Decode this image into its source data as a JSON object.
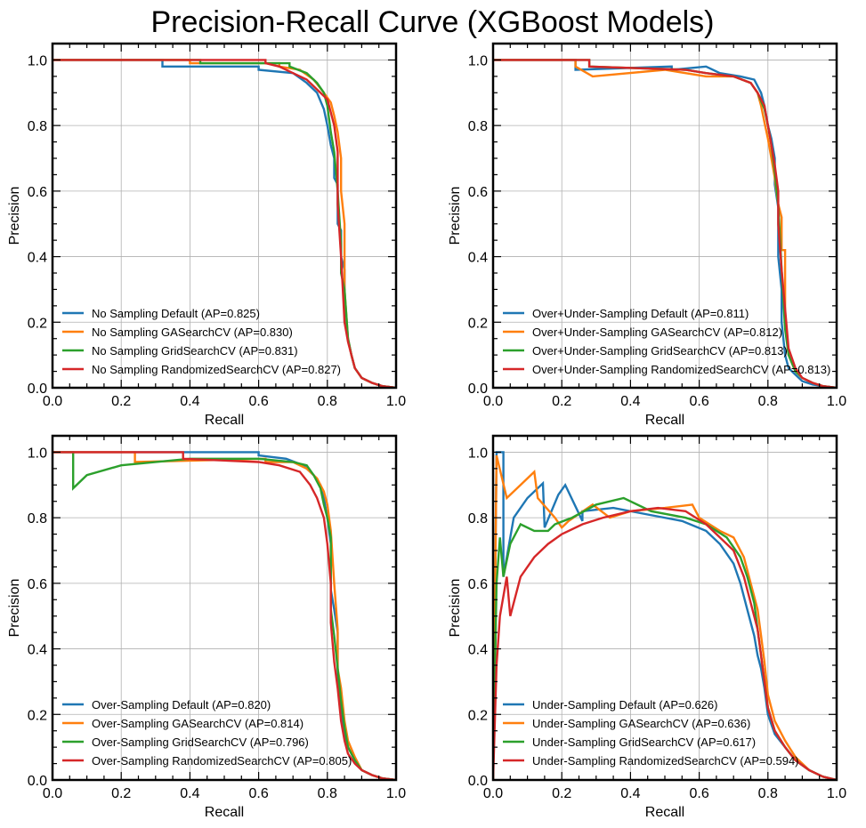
{
  "figure_title": "Precision-Recall Curve (XGBoost Models)",
  "colors": {
    "blue": "#1f77b4",
    "orange": "#ff7f0e",
    "green": "#2ca02c",
    "red": "#d62728"
  },
  "chart_data": [
    {
      "type": "line",
      "xlabel": "Recall",
      "ylabel": "Precision",
      "xlim": [
        0,
        1
      ],
      "ylim": [
        0,
        1.05
      ],
      "x_ticks": [
        "0.0",
        "0.2",
        "0.4",
        "0.6",
        "0.8",
        "1.0"
      ],
      "y_ticks": [
        "0.0",
        "0.2",
        "0.4",
        "0.6",
        "0.8",
        "1.0"
      ],
      "grid": true,
      "legend_position": "lower-left",
      "series": [
        {
          "name": "No Sampling Default (AP=0.825)",
          "color": "#1f77b4",
          "x": [
            0,
            0.32,
            0.32,
            0.6,
            0.6,
            0.7,
            0.74,
            0.77,
            0.79,
            0.8,
            0.81,
            0.82,
            0.82,
            0.83,
            0.83,
            0.84,
            0.84,
            0.85,
            0.85,
            0.86,
            0.87,
            0.88,
            0.9,
            0.93,
            0.96,
            1.0
          ],
          "y": [
            1.0,
            1.0,
            0.98,
            0.98,
            0.97,
            0.96,
            0.93,
            0.9,
            0.85,
            0.8,
            0.74,
            0.7,
            0.64,
            0.62,
            0.5,
            0.48,
            0.4,
            0.36,
            0.2,
            0.15,
            0.1,
            0.06,
            0.03,
            0.015,
            0.005,
            0.0
          ]
        },
        {
          "name": "No Sampling GASearchCV (AP=0.830)",
          "color": "#ff7f0e",
          "x": [
            0,
            0.4,
            0.4,
            0.66,
            0.66,
            0.72,
            0.76,
            0.79,
            0.81,
            0.82,
            0.83,
            0.84,
            0.84,
            0.85,
            0.85,
            0.86,
            0.87,
            0.88,
            0.9,
            0.93,
            0.96,
            1.0
          ],
          "y": [
            1.0,
            1.0,
            0.99,
            0.99,
            0.98,
            0.97,
            0.94,
            0.9,
            0.87,
            0.83,
            0.78,
            0.7,
            0.6,
            0.5,
            0.3,
            0.15,
            0.1,
            0.06,
            0.03,
            0.015,
            0.005,
            0.0
          ]
        },
        {
          "name": "No Sampling GridSearchCV (AP=0.831)",
          "color": "#2ca02c",
          "x": [
            0,
            0.43,
            0.43,
            0.69,
            0.69,
            0.74,
            0.77,
            0.79,
            0.8,
            0.81,
            0.82,
            0.83,
            0.84,
            0.84,
            0.85,
            0.86,
            0.87,
            0.88,
            0.9,
            0.93,
            0.96,
            1.0
          ],
          "y": [
            1.0,
            1.0,
            0.99,
            0.99,
            0.98,
            0.96,
            0.93,
            0.9,
            0.86,
            0.78,
            0.72,
            0.6,
            0.44,
            0.35,
            0.3,
            0.15,
            0.1,
            0.06,
            0.03,
            0.015,
            0.005,
            0.0
          ]
        },
        {
          "name": "No Sampling RandomizedSearchCV (AP=0.827)",
          "color": "#d62728",
          "x": [
            0,
            0.62,
            0.62,
            0.66,
            0.7,
            0.74,
            0.77,
            0.8,
            0.81,
            0.82,
            0.83,
            0.83,
            0.84,
            0.85,
            0.86,
            0.87,
            0.88,
            0.9,
            0.93,
            0.96,
            1.0
          ],
          "y": [
            1.0,
            1.0,
            0.99,
            0.98,
            0.96,
            0.94,
            0.91,
            0.88,
            0.84,
            0.8,
            0.72,
            0.56,
            0.4,
            0.2,
            0.14,
            0.1,
            0.06,
            0.03,
            0.015,
            0.005,
            0.0
          ]
        }
      ]
    },
    {
      "type": "line",
      "xlabel": "Recall",
      "ylabel": "Precision",
      "xlim": [
        0,
        1
      ],
      "ylim": [
        0,
        1.05
      ],
      "x_ticks": [
        "0.0",
        "0.2",
        "0.4",
        "0.6",
        "0.8",
        "1.0"
      ],
      "y_ticks": [
        "0.0",
        "0.2",
        "0.4",
        "0.6",
        "0.8",
        "1.0"
      ],
      "grid": true,
      "legend_position": "lower-left",
      "series": [
        {
          "name": "Over+Under-Sampling Default (AP=0.811)",
          "color": "#1f77b4",
          "x": [
            0,
            0.24,
            0.24,
            0.52,
            0.52,
            0.62,
            0.66,
            0.72,
            0.76,
            0.78,
            0.79,
            0.8,
            0.81,
            0.82,
            0.82,
            0.83,
            0.83,
            0.84,
            0.84,
            0.85,
            0.86,
            0.88,
            0.9,
            0.93,
            0.96,
            1.0
          ],
          "y": [
            1.0,
            1.0,
            0.97,
            0.98,
            0.97,
            0.98,
            0.96,
            0.95,
            0.94,
            0.9,
            0.86,
            0.8,
            0.76,
            0.7,
            0.62,
            0.55,
            0.4,
            0.3,
            0.2,
            0.1,
            0.06,
            0.04,
            0.02,
            0.01,
            0.005,
            0.0
          ]
        },
        {
          "name": "Over+Under-Sampling GASearchCV (AP=0.812)",
          "color": "#ff7f0e",
          "x": [
            0,
            0.24,
            0.24,
            0.29,
            0.5,
            0.56,
            0.62,
            0.7,
            0.75,
            0.77,
            0.78,
            0.79,
            0.8,
            0.81,
            0.82,
            0.83,
            0.84,
            0.84,
            0.85,
            0.85,
            0.86,
            0.88,
            0.9,
            0.93,
            0.96,
            1.0
          ],
          "y": [
            1.0,
            1.0,
            0.98,
            0.95,
            0.97,
            0.96,
            0.95,
            0.95,
            0.93,
            0.9,
            0.86,
            0.81,
            0.76,
            0.7,
            0.64,
            0.56,
            0.52,
            0.42,
            0.42,
            0.2,
            0.1,
            0.05,
            0.03,
            0.015,
            0.005,
            0.0
          ]
        },
        {
          "name": "Over+Under-Sampling GridSearchCV (AP=0.813)",
          "color": "#2ca02c",
          "x": [
            0,
            0.28,
            0.28,
            0.56,
            0.62,
            0.7,
            0.75,
            0.77,
            0.79,
            0.8,
            0.81,
            0.82,
            0.83,
            0.84,
            0.85,
            0.86,
            0.88,
            0.9,
            0.93,
            0.96,
            1.0
          ],
          "y": [
            1.0,
            1.0,
            0.98,
            0.97,
            0.96,
            0.95,
            0.93,
            0.9,
            0.85,
            0.8,
            0.74,
            0.66,
            0.56,
            0.36,
            0.18,
            0.1,
            0.05,
            0.03,
            0.015,
            0.005,
            0.0
          ]
        },
        {
          "name": "Over+Under-Sampling RandomizedSearchCV (AP=0.813)",
          "color": "#d62728",
          "x": [
            0,
            0.28,
            0.28,
            0.56,
            0.62,
            0.7,
            0.75,
            0.77,
            0.79,
            0.8,
            0.81,
            0.82,
            0.83,
            0.83,
            0.84,
            0.85,
            0.86,
            0.88,
            0.9,
            0.93,
            0.96,
            1.0
          ],
          "y": [
            1.0,
            1.0,
            0.98,
            0.97,
            0.96,
            0.95,
            0.93,
            0.9,
            0.86,
            0.8,
            0.74,
            0.68,
            0.6,
            0.5,
            0.36,
            0.24,
            0.12,
            0.06,
            0.03,
            0.015,
            0.005,
            0.0
          ]
        }
      ]
    },
    {
      "type": "line",
      "xlabel": "Recall",
      "ylabel": "Precision",
      "xlim": [
        0,
        1
      ],
      "ylim": [
        0,
        1.05
      ],
      "x_ticks": [
        "0.0",
        "0.2",
        "0.4",
        "0.6",
        "0.8",
        "1.0"
      ],
      "y_ticks": [
        "0.0",
        "0.2",
        "0.4",
        "0.6",
        "0.8",
        "1.0"
      ],
      "grid": true,
      "legend_position": "lower-left",
      "series": [
        {
          "name": "Over-Sampling Default (AP=0.820)",
          "color": "#1f77b4",
          "x": [
            0,
            0.6,
            0.6,
            0.68,
            0.73,
            0.76,
            0.78,
            0.79,
            0.8,
            0.81,
            0.81,
            0.82,
            0.83,
            0.83,
            0.84,
            0.85,
            0.86,
            0.88,
            0.9,
            0.93,
            0.96,
            1.0
          ],
          "y": [
            1.0,
            1.0,
            0.99,
            0.98,
            0.96,
            0.93,
            0.9,
            0.86,
            0.8,
            0.72,
            0.58,
            0.52,
            0.45,
            0.33,
            0.2,
            0.14,
            0.1,
            0.06,
            0.03,
            0.015,
            0.005,
            0.0
          ]
        },
        {
          "name": "Over-Sampling GASearchCV (AP=0.814)",
          "color": "#ff7f0e",
          "x": [
            0,
            0.24,
            0.24,
            0.62,
            0.62,
            0.7,
            0.74,
            0.77,
            0.79,
            0.8,
            0.81,
            0.82,
            0.83,
            0.83,
            0.84,
            0.85,
            0.86,
            0.88,
            0.9,
            0.93,
            0.96,
            1.0
          ],
          "y": [
            1.0,
            1.0,
            0.97,
            0.98,
            0.97,
            0.97,
            0.95,
            0.92,
            0.88,
            0.84,
            0.76,
            0.6,
            0.46,
            0.34,
            0.28,
            0.18,
            0.12,
            0.07,
            0.03,
            0.015,
            0.005,
            0.0
          ]
        },
        {
          "name": "Over-Sampling GridSearchCV (AP=0.796)",
          "color": "#2ca02c",
          "x": [
            0,
            0.06,
            0.06,
            0.1,
            0.2,
            0.4,
            0.6,
            0.7,
            0.74,
            0.76,
            0.78,
            0.79,
            0.8,
            0.81,
            0.81,
            0.82,
            0.83,
            0.84,
            0.85,
            0.86,
            0.88,
            0.9,
            0.93,
            0.96,
            1.0
          ],
          "y": [
            1.0,
            1.0,
            0.89,
            0.93,
            0.96,
            0.98,
            0.98,
            0.97,
            0.96,
            0.93,
            0.89,
            0.84,
            0.8,
            0.74,
            0.52,
            0.44,
            0.34,
            0.24,
            0.16,
            0.1,
            0.06,
            0.03,
            0.015,
            0.005,
            0.0
          ]
        },
        {
          "name": "Over-Sampling RandomizedSearchCV (AP=0.805)",
          "color": "#d62728",
          "x": [
            0,
            0.38,
            0.38,
            0.6,
            0.66,
            0.72,
            0.75,
            0.77,
            0.79,
            0.8,
            0.81,
            0.81,
            0.82,
            0.83,
            0.84,
            0.85,
            0.86,
            0.88,
            0.9,
            0.93,
            0.96,
            1.0
          ],
          "y": [
            1.0,
            1.0,
            0.98,
            0.97,
            0.96,
            0.94,
            0.9,
            0.86,
            0.8,
            0.72,
            0.6,
            0.48,
            0.36,
            0.28,
            0.18,
            0.12,
            0.08,
            0.05,
            0.03,
            0.015,
            0.005,
            0.0
          ]
        }
      ]
    },
    {
      "type": "line",
      "xlabel": "Recall",
      "ylabel": "Precision",
      "xlim": [
        0,
        1
      ],
      "ylim": [
        0,
        1.05
      ],
      "x_ticks": [
        "0.0",
        "0.2",
        "0.4",
        "0.6",
        "0.8",
        "1.0"
      ],
      "y_ticks": [
        "0.0",
        "0.2",
        "0.4",
        "0.6",
        "0.8",
        "1.0"
      ],
      "grid": true,
      "legend_position": "lower-left",
      "series": [
        {
          "name": "Under-Sampling Default (AP=0.626)",
          "color": "#1f77b4",
          "x": [
            0,
            0.01,
            0.03,
            0.03,
            0.06,
            0.1,
            0.145,
            0.15,
            0.19,
            0.21,
            0.26,
            0.26,
            0.35,
            0.45,
            0.55,
            0.62,
            0.66,
            0.7,
            0.72,
            0.74,
            0.76,
            0.77,
            0.78,
            0.79,
            0.8,
            0.82,
            0.85,
            0.88,
            0.92,
            0.96,
            1.0
          ],
          "y": [
            0.0,
            1.0,
            1.0,
            0.62,
            0.8,
            0.86,
            0.905,
            0.77,
            0.87,
            0.9,
            0.79,
            0.82,
            0.83,
            0.81,
            0.79,
            0.76,
            0.72,
            0.66,
            0.6,
            0.52,
            0.44,
            0.38,
            0.34,
            0.28,
            0.2,
            0.14,
            0.1,
            0.06,
            0.03,
            0.01,
            0.0
          ]
        },
        {
          "name": "Under-Sampling GASearchCV (AP=0.636)",
          "color": "#ff7f0e",
          "x": [
            0,
            0.01,
            0.04,
            0.08,
            0.12,
            0.13,
            0.18,
            0.2,
            0.22,
            0.29,
            0.34,
            0.4,
            0.5,
            0.58,
            0.6,
            0.66,
            0.7,
            0.73,
            0.75,
            0.77,
            0.78,
            0.79,
            0.8,
            0.82,
            0.85,
            0.88,
            0.92,
            0.96,
            1.0
          ],
          "y": [
            0.0,
            0.99,
            0.86,
            0.9,
            0.94,
            0.86,
            0.8,
            0.77,
            0.79,
            0.84,
            0.8,
            0.82,
            0.83,
            0.84,
            0.8,
            0.76,
            0.74,
            0.68,
            0.6,
            0.52,
            0.44,
            0.36,
            0.26,
            0.18,
            0.12,
            0.07,
            0.03,
            0.01,
            0.0
          ]
        },
        {
          "name": "Under-Sampling GridSearchCV (AP=0.617)",
          "color": "#2ca02c",
          "x": [
            0,
            0.01,
            0.02,
            0.03,
            0.05,
            0.08,
            0.12,
            0.16,
            0.18,
            0.23,
            0.3,
            0.38,
            0.46,
            0.56,
            0.62,
            0.68,
            0.72,
            0.74,
            0.76,
            0.77,
            0.78,
            0.79,
            0.8,
            0.82,
            0.85,
            0.88,
            0.92,
            0.96,
            1.0
          ],
          "y": [
            0.0,
            0.6,
            0.74,
            0.62,
            0.72,
            0.78,
            0.76,
            0.76,
            0.78,
            0.8,
            0.84,
            0.86,
            0.82,
            0.8,
            0.78,
            0.74,
            0.68,
            0.62,
            0.54,
            0.46,
            0.38,
            0.3,
            0.22,
            0.15,
            0.1,
            0.06,
            0.03,
            0.01,
            0.0
          ]
        },
        {
          "name": "Under-Sampling RandomizedSearchCV (AP=0.594)",
          "color": "#d62728",
          "x": [
            0,
            0.01,
            0.02,
            0.04,
            0.05,
            0.08,
            0.12,
            0.16,
            0.2,
            0.26,
            0.32,
            0.4,
            0.48,
            0.56,
            0.62,
            0.66,
            0.7,
            0.73,
            0.75,
            0.77,
            0.78,
            0.79,
            0.8,
            0.82,
            0.85,
            0.88,
            0.92,
            0.96,
            1.0
          ],
          "y": [
            0.0,
            0.35,
            0.5,
            0.62,
            0.5,
            0.62,
            0.68,
            0.72,
            0.75,
            0.78,
            0.8,
            0.82,
            0.83,
            0.82,
            0.78,
            0.74,
            0.7,
            0.62,
            0.54,
            0.46,
            0.38,
            0.3,
            0.22,
            0.15,
            0.1,
            0.06,
            0.03,
            0.01,
            0.0
          ]
        }
      ]
    }
  ]
}
